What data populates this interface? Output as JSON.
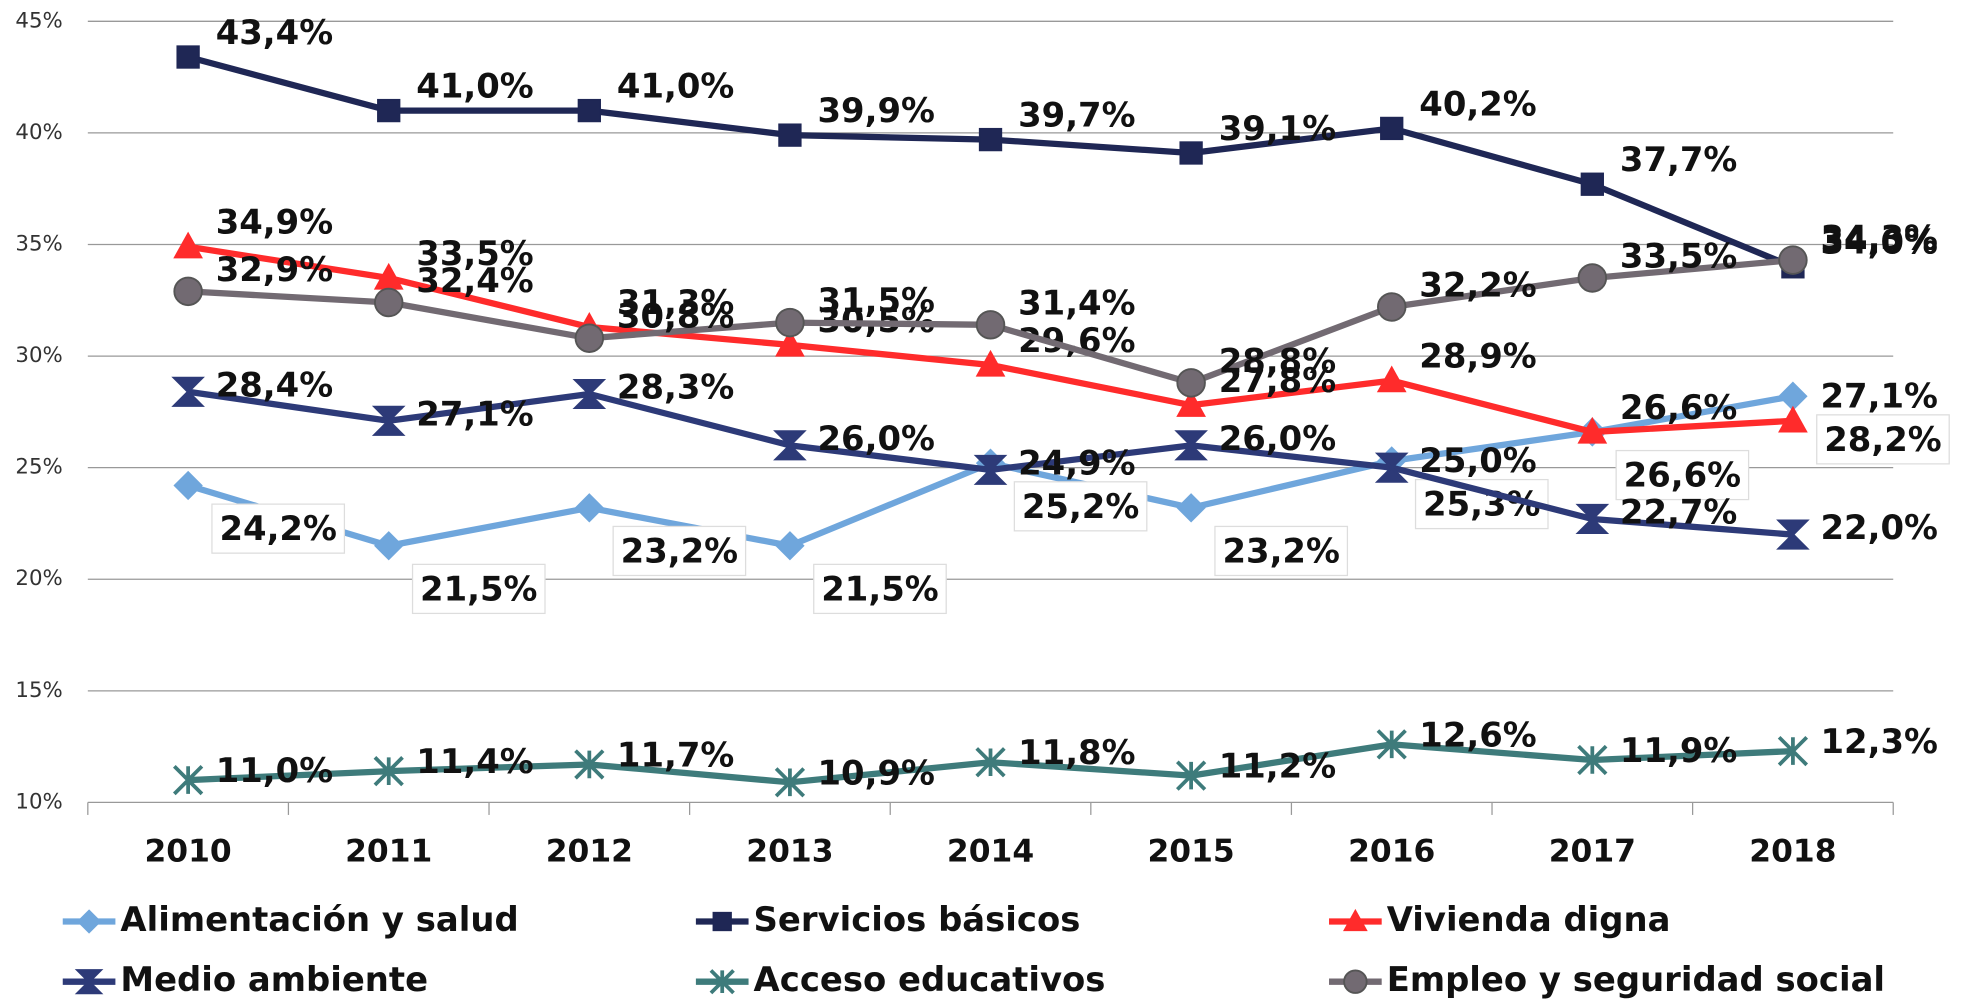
{
  "chart_data": {
    "type": "line",
    "categories": [
      "2010",
      "2011",
      "2012",
      "2013",
      "2014",
      "2015",
      "2016",
      "2017",
      "2018"
    ],
    "ylim": [
      10,
      45
    ],
    "yticks": [
      {
        "value": 10,
        "label": "10%"
      },
      {
        "value": 15,
        "label": "15%"
      },
      {
        "value": 20,
        "label": "20%"
      },
      {
        "value": 25,
        "label": "25%"
      },
      {
        "value": 30,
        "label": "30%"
      },
      {
        "value": 35,
        "label": "35%"
      },
      {
        "value": 40,
        "label": "40%"
      },
      {
        "value": 45,
        "label": "45%"
      }
    ],
    "grid": true,
    "legend": "bottom",
    "series": [
      {
        "name": "Alimentación y salud",
        "color": "#6fa6dc",
        "marker": "diamond",
        "values": [
          24.2,
          21.5,
          23.2,
          21.5,
          25.2,
          23.2,
          25.3,
          26.6,
          28.2
        ],
        "value_labels": [
          "24,2%",
          "21,5%",
          "23,2%",
          "21,5%",
          "25,2%",
          "23,2%",
          "25,3%",
          "26,6%",
          "28,2%"
        ]
      },
      {
        "name": "Servicios básicos",
        "color": "#1f2755",
        "marker": "square",
        "values": [
          43.4,
          41.0,
          41.0,
          39.9,
          39.7,
          39.1,
          40.2,
          37.7,
          34.0
        ],
        "value_labels": [
          "43,4%",
          "41,0%",
          "41,0%",
          "39,9%",
          "39,7%",
          "39,1%",
          "40,2%",
          "37,7%",
          "34,0%"
        ]
      },
      {
        "name": "Vivienda digna",
        "color": "#ff2b2b",
        "marker": "triangle",
        "values": [
          34.9,
          33.5,
          31.3,
          30.5,
          29.6,
          27.8,
          28.9,
          26.6,
          27.1
        ],
        "value_labels": [
          "34,9%",
          "33,5%",
          "31,3%",
          "30,5%",
          "29,6%",
          "27,8%",
          "28,9%",
          "26,6%",
          "27,1%"
        ]
      },
      {
        "name": "Medio ambiente",
        "color": "#2d3a78",
        "marker": "bowtie",
        "values": [
          28.4,
          27.1,
          28.3,
          26.0,
          24.9,
          26.0,
          25.0,
          22.7,
          22.0
        ],
        "value_labels": [
          "28,4%",
          "27,1%",
          "28,3%",
          "26,0%",
          "24,9%",
          "26,0%",
          "25,0%",
          "22,7%",
          "22,0%"
        ]
      },
      {
        "name": "Acceso educativos",
        "color": "#3e7b7b",
        "marker": "star",
        "values": [
          11.0,
          11.4,
          11.7,
          10.9,
          11.8,
          11.2,
          12.6,
          11.9,
          12.3
        ],
        "value_labels": [
          "11,0%",
          "11,4%",
          "11,7%",
          "10,9%",
          "11,8%",
          "11,2%",
          "12,6%",
          "11,9%",
          "12,3%"
        ]
      },
      {
        "name": "Empleo y seguridad social",
        "color": "#726a72",
        "marker": "circle",
        "values": [
          32.9,
          32.4,
          30.8,
          31.5,
          31.4,
          28.8,
          32.2,
          33.5,
          34.3
        ],
        "value_labels": [
          "32,9%",
          "32,4%",
          "30,8%",
          "31,5%",
          "31,4%",
          "28,8%",
          "32,2%",
          "33,5%",
          "34,3%"
        ]
      }
    ]
  }
}
